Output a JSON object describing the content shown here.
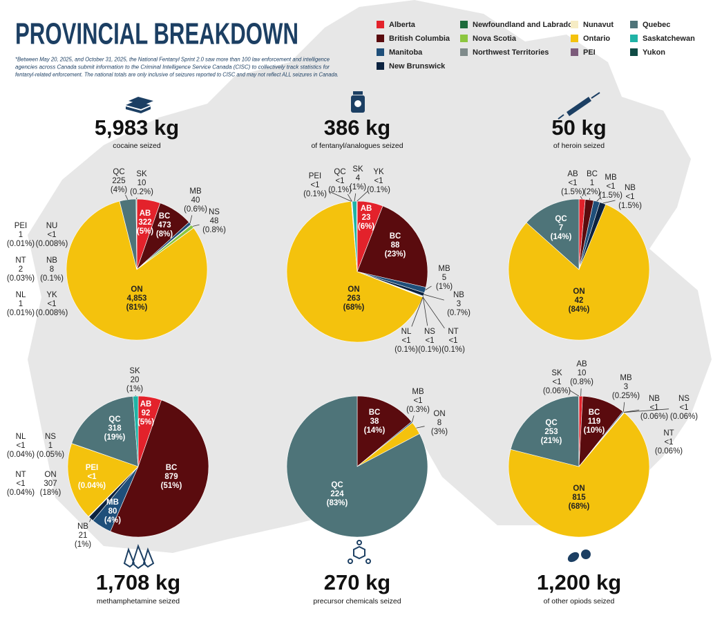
{
  "title": "PROVINCIAL BREAKDOWN",
  "note": [
    "*Between May 20, 2025, and October 31, 2025, the National Fentanyl Sprint 2.0 saw more than 100 law enforcement and intelligence",
    "agencies across Canada submit information to the Criminal Intelligence Service Canada (CISC) to collectively track statistics for",
    "fentanyl-related enforcement. The national totals are only inclusive of seizures reported to CISC and may not reflect ALL seizures in Canada."
  ],
  "legend": [
    {
      "name": "Alberta",
      "color": "#e3222b"
    },
    {
      "name": "British Columbia",
      "color": "#5a0b0e"
    },
    {
      "name": "Manitoba",
      "color": "#1f4f7a"
    },
    {
      "name": "New Brunswick",
      "color": "#0c2340"
    },
    {
      "name": "Newfoundland and Labrador",
      "color": "#1d6b3b"
    },
    {
      "name": "Nova Scotia",
      "color": "#8cc63f"
    },
    {
      "name": "Northwest Territories",
      "color": "#7f8b8b"
    },
    {
      "name": "Nunavut",
      "color": "#f6ecc4"
    },
    {
      "name": "Ontario",
      "color": "#f4c20d"
    },
    {
      "name": "PEI",
      "color": "#7c5b7b"
    },
    {
      "name": "Quebec",
      "color": "#4e7479"
    },
    {
      "name": "Saskatchewan",
      "color": "#20b3a6"
    },
    {
      "name": "Yukon",
      "color": "#0f4b45"
    }
  ],
  "chart_data": [
    {
      "type": "pie",
      "title": "5,983 kg",
      "subtitle": "cocaine seized",
      "categories": [
        "AB",
        "BC",
        "MB",
        "NB",
        "NL",
        "NS",
        "NT",
        "NU",
        "ON",
        "PEI",
        "QC",
        "SK",
        "YK"
      ],
      "values": [
        322,
        473,
        40,
        8,
        1,
        48,
        2,
        0.5,
        4853,
        1,
        225,
        10,
        0.5
      ],
      "value_labels": [
        "322",
        "473",
        "40",
        "8",
        "1",
        "48",
        "2",
        "<1",
        "4,853",
        "1",
        "225",
        "10",
        "<1"
      ],
      "percent_labels": [
        "(5%)",
        "(8%)",
        "(0.6%)",
        "(0.1%)",
        "(0.01%)",
        "(0.8%)",
        "(0.03%)",
        "(0.008%)",
        "(81%)",
        "(0.01%)",
        "(4%)",
        "(0.2%)",
        "(0.008%)"
      ],
      "colors": [
        "#e3222b",
        "#5a0b0e",
        "#1f4f7a",
        "#0c2340",
        "#1d6b3b",
        "#8cc63f",
        "#7f8b8b",
        "#f6ecc4",
        "#f4c20d",
        "#7c5b7b",
        "#4e7479",
        "#20b3a6",
        "#0f4b45"
      ]
    },
    {
      "type": "pie",
      "title": "386 kg",
      "subtitle": "of fentanyl/analogues seized",
      "categories": [
        "AB",
        "BC",
        "MB",
        "NB",
        "NL",
        "NS",
        "NT",
        "ON",
        "PEI",
        "QC",
        "SK",
        "YK"
      ],
      "values": [
        23,
        88,
        5,
        3,
        0.4,
        0.4,
        0.4,
        263,
        0.4,
        0.4,
        4,
        0.4
      ],
      "value_labels": [
        "23",
        "88",
        "5",
        "3",
        "<1",
        "<1",
        "<1",
        "263",
        "<1",
        "<1",
        "4",
        "<1"
      ],
      "percent_labels": [
        "(6%)",
        "(23%)",
        "(1%)",
        "(0.7%)",
        "(0.1%)",
        "(0.1%)",
        "(0.1%)",
        "(68%)",
        "(0.1%)",
        "(0.1%)",
        "(1%)",
        "(0.1%)"
      ],
      "colors": [
        "#e3222b",
        "#5a0b0e",
        "#1f4f7a",
        "#0c2340",
        "#1d6b3b",
        "#8cc63f",
        "#7f8b8b",
        "#f4c20d",
        "#7c5b7b",
        "#4e7479",
        "#20b3a6",
        "#0f4b45"
      ]
    },
    {
      "type": "pie",
      "title": "50 kg",
      "subtitle": "of heroin seized",
      "categories": [
        "AB",
        "BC",
        "MB",
        "NB",
        "ON",
        "QC"
      ],
      "values": [
        0.75,
        1,
        0.75,
        0.75,
        42,
        7
      ],
      "value_labels": [
        "<1",
        "1",
        "<1",
        "<1",
        "42",
        "7"
      ],
      "percent_labels": [
        "(1.5%)",
        "(2%)",
        "(1.5%)",
        "(1.5%)",
        "(84%)",
        "(14%)"
      ],
      "colors": [
        "#e3222b",
        "#5a0b0e",
        "#1f4f7a",
        "#0c2340",
        "#f4c20d",
        "#4e7479"
      ]
    },
    {
      "type": "pie",
      "title": "1,708 kg",
      "subtitle": "methamphetamine seized",
      "categories": [
        "AB",
        "BC",
        "MB",
        "NB",
        "NL",
        "NS",
        "NT",
        "ON",
        "PEI",
        "QC",
        "SK"
      ],
      "values": [
        92,
        879,
        80,
        21,
        0.7,
        1,
        0.7,
        307,
        0.7,
        318,
        20
      ],
      "value_labels": [
        "92",
        "879",
        "80",
        "21",
        "<1",
        "1",
        "<1",
        "307",
        "<1",
        "318",
        "20"
      ],
      "percent_labels": [
        "(5%)",
        "(51%)",
        "(4%)",
        "(1%)",
        "(0.04%)",
        "(0.05%)",
        "(0.04%)",
        "(18%)",
        "(0.04%)",
        "(19%)",
        "(1%)"
      ],
      "colors": [
        "#e3222b",
        "#5a0b0e",
        "#1f4f7a",
        "#0c2340",
        "#1d6b3b",
        "#8cc63f",
        "#7f8b8b",
        "#f4c20d",
        "#7c5b7b",
        "#4e7479",
        "#20b3a6"
      ]
    },
    {
      "type": "pie",
      "title": "270 kg",
      "subtitle": "precursor chemicals seized",
      "categories": [
        "BC",
        "MB",
        "ON",
        "QC"
      ],
      "values": [
        38,
        0.8,
        8,
        224
      ],
      "value_labels": [
        "38",
        "<1",
        "8",
        "224"
      ],
      "percent_labels": [
        "(14%)",
        "(0.3%)",
        "(3%)",
        "(83%)"
      ],
      "colors": [
        "#5a0b0e",
        "#1f4f7a",
        "#f4c20d",
        "#4e7479"
      ]
    },
    {
      "type": "pie",
      "title": "1,200 kg",
      "subtitle": "of other opiods seized",
      "categories": [
        "AB",
        "BC",
        "MB",
        "NB",
        "NS",
        "NT",
        "ON",
        "QC",
        "SK"
      ],
      "values": [
        10,
        119,
        3,
        0.7,
        0.7,
        0.7,
        815,
        253,
        0.7
      ],
      "value_labels": [
        "10",
        "119",
        "3",
        "<1",
        "<1",
        "<1",
        "815",
        "253",
        "<1"
      ],
      "percent_labels": [
        "(0.8%)",
        "(10%)",
        "(0.25%)",
        "(0.06%)",
        "(0.06%)",
        "(0.06%)",
        "(68%)",
        "(21%)",
        "(0.06%)"
      ],
      "colors": [
        "#e3222b",
        "#5a0b0e",
        "#1f4f7a",
        "#0c2340",
        "#8cc63f",
        "#7f8b8b",
        "#f4c20d",
        "#4e7479",
        "#20b3a6"
      ]
    }
  ]
}
